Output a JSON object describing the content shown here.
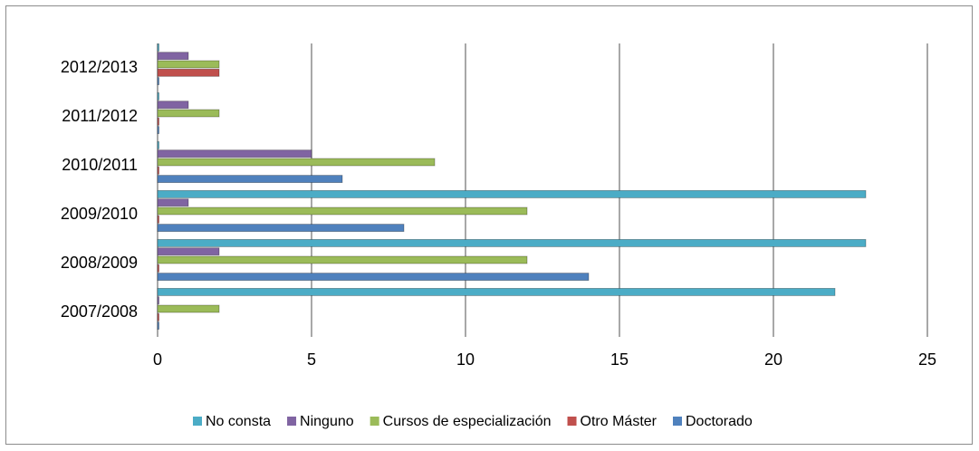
{
  "chart_data": {
    "type": "bar",
    "orientation": "horizontal",
    "categories": [
      "2007/2008",
      "2008/2009",
      "2009/2010",
      "2010/2011",
      "2011/2012",
      "2012/2013"
    ],
    "series": [
      {
        "name": "No consta",
        "color": "#4bacc6",
        "values": [
          22,
          23,
          23,
          0,
          0,
          0
        ]
      },
      {
        "name": "Ninguno",
        "color": "#8064a2",
        "values": [
          0,
          2,
          1,
          5,
          1,
          1
        ]
      },
      {
        "name": "Cursos de especialización",
        "color": "#9bbb59",
        "values": [
          2,
          12,
          12,
          9,
          2,
          2
        ]
      },
      {
        "name": "Otro Máster",
        "color": "#c0504d",
        "values": [
          0,
          0,
          0,
          0,
          0,
          2
        ]
      },
      {
        "name": "Doctorado",
        "color": "#4f81bd",
        "values": [
          0,
          14,
          8,
          6,
          0,
          0
        ]
      }
    ],
    "xlim": [
      0,
      25
    ],
    "xticks": [
      0,
      5,
      10,
      15,
      20,
      25
    ],
    "grid": true,
    "legend": "bottom"
  }
}
